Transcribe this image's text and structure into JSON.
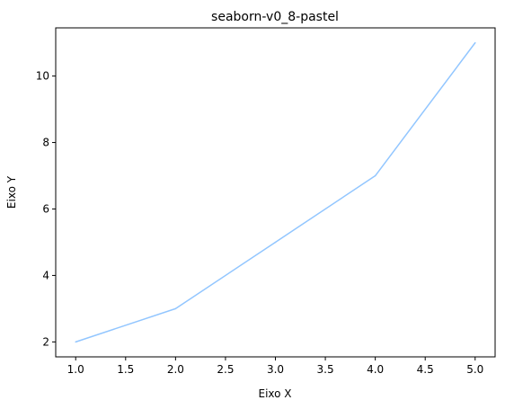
{
  "chart_data": {
    "type": "line",
    "title": "seaborn-v0_8-pastel",
    "xlabel": "Eixo X",
    "ylabel": "Eixo Y",
    "x": [
      1,
      2,
      3,
      4,
      5
    ],
    "series": [
      {
        "values": [
          2,
          3,
          5,
          7,
          11
        ],
        "color": "#92C6FF"
      }
    ],
    "xlim": [
      0.8,
      5.2
    ],
    "ylim": [
      1.55,
      11.45
    ],
    "xticks": [
      1.0,
      1.5,
      2.0,
      2.5,
      3.0,
      3.5,
      4.0,
      4.5,
      5.0
    ],
    "xtick_labels": [
      "1.0",
      "1.5",
      "2.0",
      "2.5",
      "3.0",
      "3.5",
      "4.0",
      "4.5",
      "5.0"
    ],
    "yticks": [
      2,
      4,
      6,
      8,
      10
    ],
    "ytick_labels": [
      "2",
      "4",
      "6",
      "8",
      "10"
    ],
    "grid": false,
    "legend": false
  }
}
